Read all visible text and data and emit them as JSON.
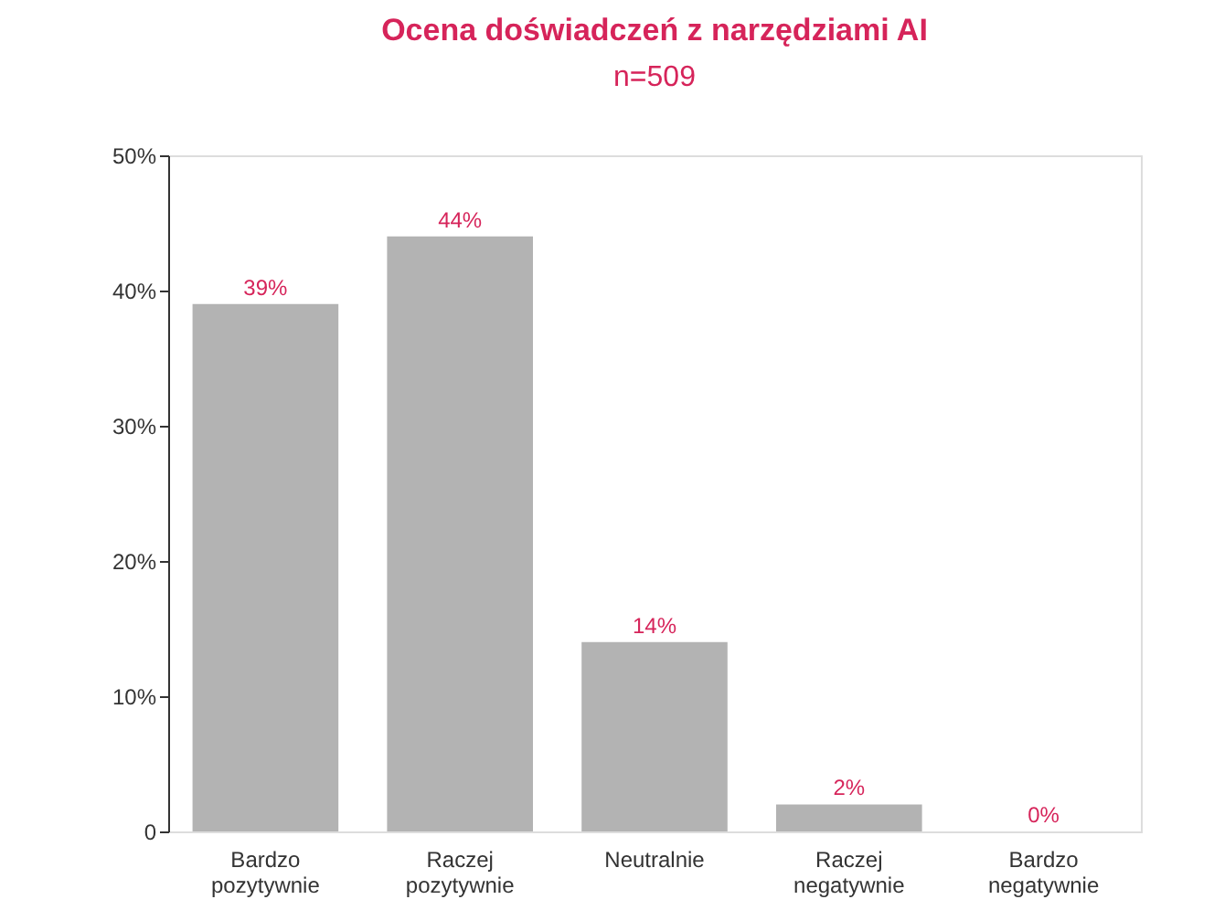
{
  "chart_data": {
    "type": "bar",
    "title": "Ocena doświadczeń z narzędziami AI",
    "subtitle": "n=509",
    "categories": [
      "Bardzo pozytywnie",
      "Raczej pozytywnie",
      "Neutralnie",
      "Raczej negatywnie",
      "Bardzo negatywnie"
    ],
    "values": [
      39,
      44,
      14,
      2,
      0
    ],
    "value_labels": [
      "39%",
      "44%",
      "14%",
      "2%",
      "0%"
    ],
    "color": "#b3b3b3",
    "ylim": [
      0,
      50
    ],
    "yticks": [
      {
        "value": 0,
        "label": "0"
      },
      {
        "value": 10,
        "label": "10%"
      },
      {
        "value": 20,
        "label": "20%"
      },
      {
        "value": 30,
        "label": "30%"
      },
      {
        "value": 40,
        "label": "40%"
      },
      {
        "value": 50,
        "label": "50%"
      }
    ],
    "grid": false
  }
}
